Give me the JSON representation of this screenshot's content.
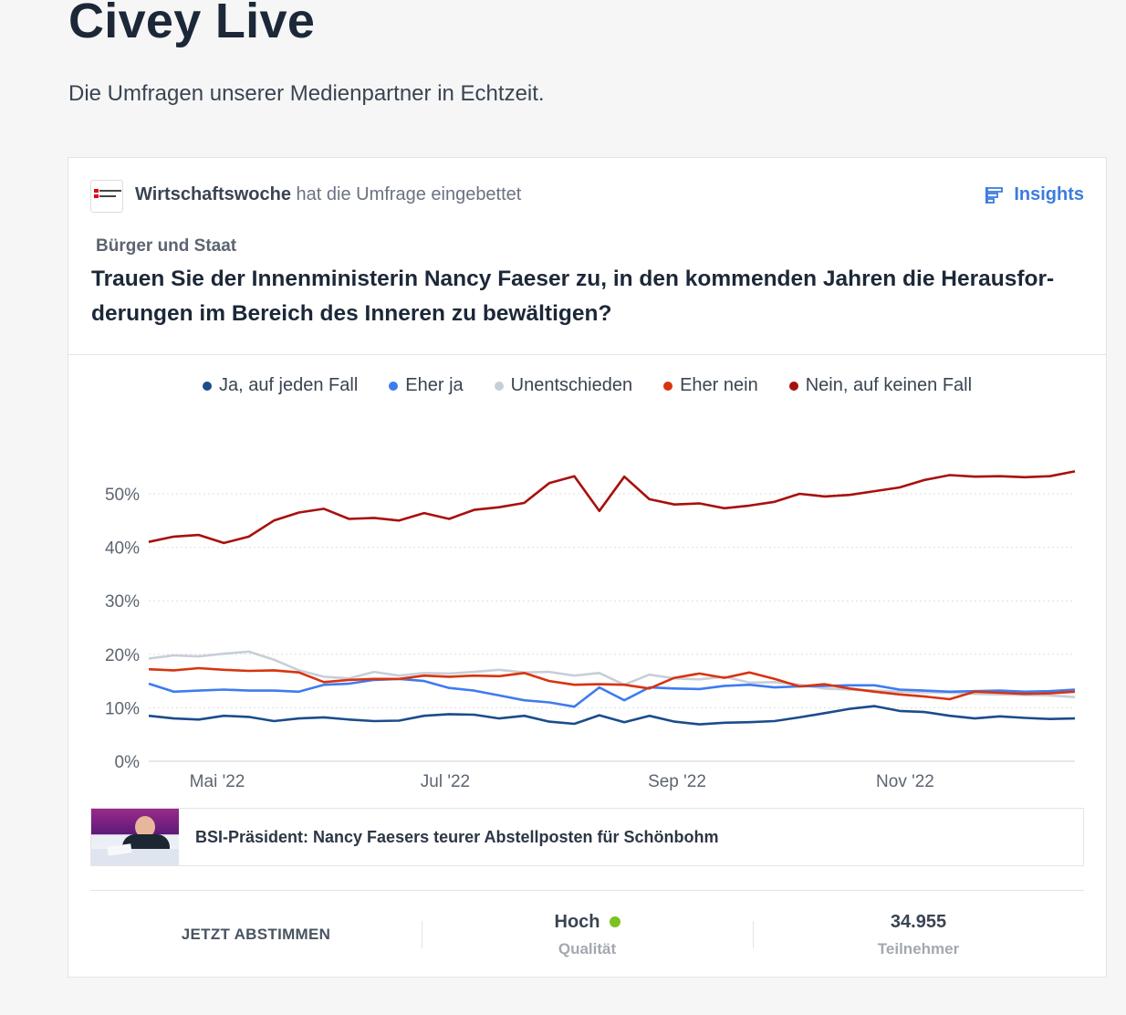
{
  "header": {
    "title": "Civey Live",
    "subtitle": "Die Umfragen unserer Medienpartner in Echtzeit."
  },
  "poll": {
    "partner_name": "Wirtschaftswoche",
    "partner_suffix": " hat die Umfrage eingebettet",
    "insights_label": "Insights",
    "category": "Bürger und Staat",
    "question": "Trauen Sie der Innenministerin Nancy Faeser zu, in den kommenden Jahren die Herausfor-derungen im Bereich des Inneren zu bewältigen?"
  },
  "news": {
    "title": "BSI-Präsident: Nancy Faesers teurer Abstellposten für Schönbohm"
  },
  "footer": {
    "vote_label": "JETZT ABSTIMMEN",
    "quality_value": "Hoch",
    "quality_label": "Qualität",
    "quality_color": "#7cc21e",
    "participants_value": "34.955",
    "participants_label": "Teilnehmer"
  },
  "icons": {
    "insights": "insights-bars-icon",
    "logo": "wirtschaftswoche-logo"
  },
  "chart_data": {
    "type": "line",
    "xlabel": "",
    "ylabel": "",
    "ylim": [
      0,
      55
    ],
    "yticks": [
      0,
      10,
      20,
      30,
      40,
      50
    ],
    "ytick_labels": [
      "0%",
      "10%",
      "20%",
      "30%",
      "40%",
      "50%"
    ],
    "xtick_labels": [
      "Mai '22",
      "Jul '22",
      "Sep '22",
      "Nov '22"
    ],
    "xtick_dates": [
      "2022-05-01",
      "2022-07-01",
      "2022-09-01",
      "2022-11-01"
    ],
    "x": [
      "2022-04-12",
      "2022-04-19",
      "2022-04-26",
      "2022-05-03",
      "2022-05-10",
      "2022-05-17",
      "2022-05-24",
      "2022-05-31",
      "2022-06-07",
      "2022-06-14",
      "2022-06-21",
      "2022-06-28",
      "2022-07-05",
      "2022-07-12",
      "2022-07-19",
      "2022-07-26",
      "2022-08-02",
      "2022-08-09",
      "2022-08-16",
      "2022-08-23",
      "2022-08-30",
      "2022-09-06",
      "2022-09-13",
      "2022-09-20",
      "2022-09-27",
      "2022-10-04",
      "2022-10-11",
      "2022-10-18",
      "2022-10-25",
      "2022-11-01",
      "2022-11-08",
      "2022-11-15",
      "2022-11-22",
      "2022-11-29",
      "2022-12-06",
      "2022-12-13",
      "2022-12-20",
      "2022-12-27"
    ],
    "grid": true,
    "legend_position": "top",
    "series": [
      {
        "name": "Ja, auf jeden Fall",
        "color": "#1b4c8c",
        "values": [
          8.5,
          8.0,
          7.8,
          8.5,
          8.3,
          7.5,
          8.0,
          8.2,
          7.8,
          7.5,
          7.6,
          8.5,
          8.8,
          8.7,
          8.0,
          8.5,
          7.4,
          7.0,
          8.6,
          7.3,
          8.5,
          7.4,
          6.9,
          7.2,
          7.3,
          7.5,
          8.2,
          9.0,
          9.8,
          10.3,
          9.4,
          9.2,
          8.5,
          8.0,
          8.4,
          8.1,
          7.9,
          8.0
        ]
      },
      {
        "name": "Eher ja",
        "color": "#3f7bf0",
        "values": [
          14.5,
          13.0,
          13.2,
          13.4,
          13.2,
          13.2,
          13.0,
          14.3,
          14.5,
          15.2,
          15.4,
          15.0,
          13.7,
          13.2,
          12.3,
          11.4,
          11.0,
          10.2,
          13.8,
          11.4,
          13.8,
          13.6,
          13.5,
          14.1,
          14.3,
          13.8,
          14.0,
          14.1,
          14.2,
          14.2,
          13.4,
          13.2,
          13.0,
          13.1,
          13.2,
          13.0,
          13.1,
          13.4
        ]
      },
      {
        "name": "Unentschieden",
        "color": "#c8ced8",
        "values": [
          19.2,
          19.8,
          19.6,
          20.1,
          20.5,
          19.0,
          17.0,
          15.8,
          15.5,
          16.7,
          16.0,
          16.5,
          16.4,
          16.7,
          17.1,
          16.6,
          16.7,
          16.0,
          16.5,
          14.3,
          16.2,
          15.5,
          15.3,
          15.8,
          14.7,
          14.8,
          14.3,
          13.6,
          13.4,
          13.2,
          13.0,
          12.9,
          12.8,
          12.6,
          12.5,
          12.4,
          12.3,
          12.0
        ]
      },
      {
        "name": "Eher nein",
        "color": "#d7340f",
        "values": [
          17.2,
          17.0,
          17.4,
          17.1,
          16.9,
          17.0,
          16.6,
          14.8,
          15.2,
          15.4,
          15.4,
          16.0,
          15.8,
          16.0,
          15.9,
          16.5,
          15.0,
          14.3,
          14.4,
          14.3,
          13.6,
          15.6,
          16.4,
          15.6,
          16.6,
          15.4,
          14.0,
          14.4,
          13.6,
          13.0,
          12.5,
          12.1,
          11.6,
          13.0,
          12.8,
          12.6,
          12.7,
          13.0
        ]
      },
      {
        "name": "Nein, auf keinen Fall",
        "color": "#a8100e",
        "values": [
          41.0,
          42.0,
          42.3,
          40.8,
          42.0,
          45.0,
          46.5,
          47.2,
          45.3,
          45.5,
          45.0,
          46.4,
          45.3,
          47.0,
          47.5,
          48.3,
          52.0,
          53.3,
          46.8,
          53.2,
          49.0,
          48.0,
          48.2,
          47.3,
          47.8,
          48.5,
          50.0,
          49.5,
          49.8,
          50.5,
          51.2,
          52.6,
          53.5,
          53.2,
          53.3,
          53.1,
          53.3,
          54.2
        ]
      }
    ]
  }
}
